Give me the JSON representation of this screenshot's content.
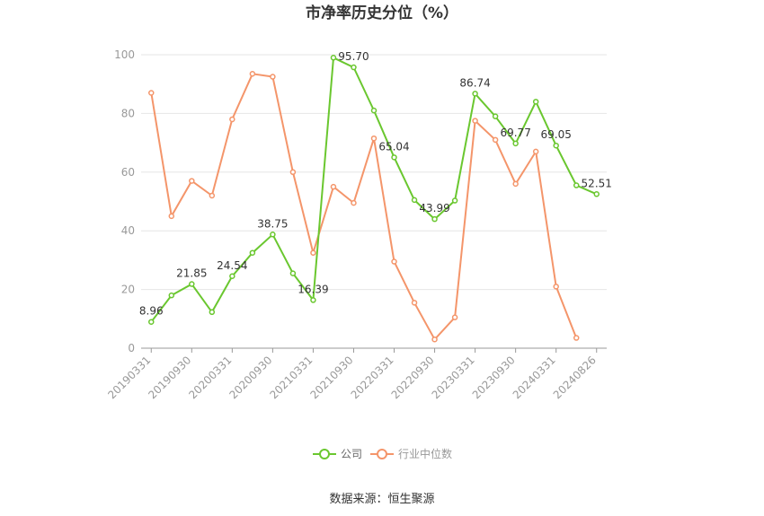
{
  "chart_data": {
    "type": "line",
    "title": "市净率历史分位（%）",
    "xlabel": "",
    "ylabel": "",
    "ylim": [
      0,
      100
    ],
    "yticks": [
      0,
      20,
      40,
      60,
      80,
      100
    ],
    "grid": true,
    "legend_position": "bottom",
    "x": [
      "20190331",
      "20190630",
      "20190930",
      "20191231",
      "20200331",
      "20200630",
      "20200930",
      "20201231",
      "20210331",
      "20210630",
      "20210930",
      "20211231",
      "20220331",
      "20220630",
      "20220930",
      "20221231",
      "20230331",
      "20230630",
      "20230930",
      "20231231",
      "20240331",
      "20240630",
      "20240826"
    ],
    "x_tick_labels": [
      "20190331",
      "20190930",
      "20200331",
      "20200930",
      "20210331",
      "20210930",
      "20220331",
      "20220930",
      "20230331",
      "20230930",
      "20240331",
      "20240826"
    ],
    "series": [
      {
        "name": "公司",
        "color": "#6ac72f",
        "values": [
          8.96,
          18.0,
          21.85,
          12.3,
          24.54,
          32.5,
          38.75,
          25.5,
          16.39,
          99.0,
          95.7,
          81.0,
          65.04,
          50.5,
          43.99,
          50.3,
          86.74,
          79.0,
          69.77,
          84.0,
          69.05,
          55.5,
          52.51
        ],
        "labels": [
          "8.96",
          "",
          "21.85",
          "",
          "24.54",
          "",
          "38.75",
          "",
          "16.39",
          "",
          "95.70",
          "",
          "65.04",
          "",
          "43.99",
          "",
          "86.74",
          "",
          "69.77",
          "",
          "69.05",
          "",
          "52.51"
        ]
      },
      {
        "name": "行业中位数",
        "color": "#f4956a",
        "values": [
          87.0,
          45.0,
          57.0,
          52.0,
          78.0,
          93.5,
          92.5,
          60.0,
          32.5,
          55.0,
          49.5,
          71.5,
          29.5,
          15.5,
          3.0,
          10.5,
          77.5,
          71.0,
          56.0,
          67.0,
          21.0,
          3.5,
          null
        ]
      }
    ],
    "source": "数据来源：恒生聚源"
  }
}
